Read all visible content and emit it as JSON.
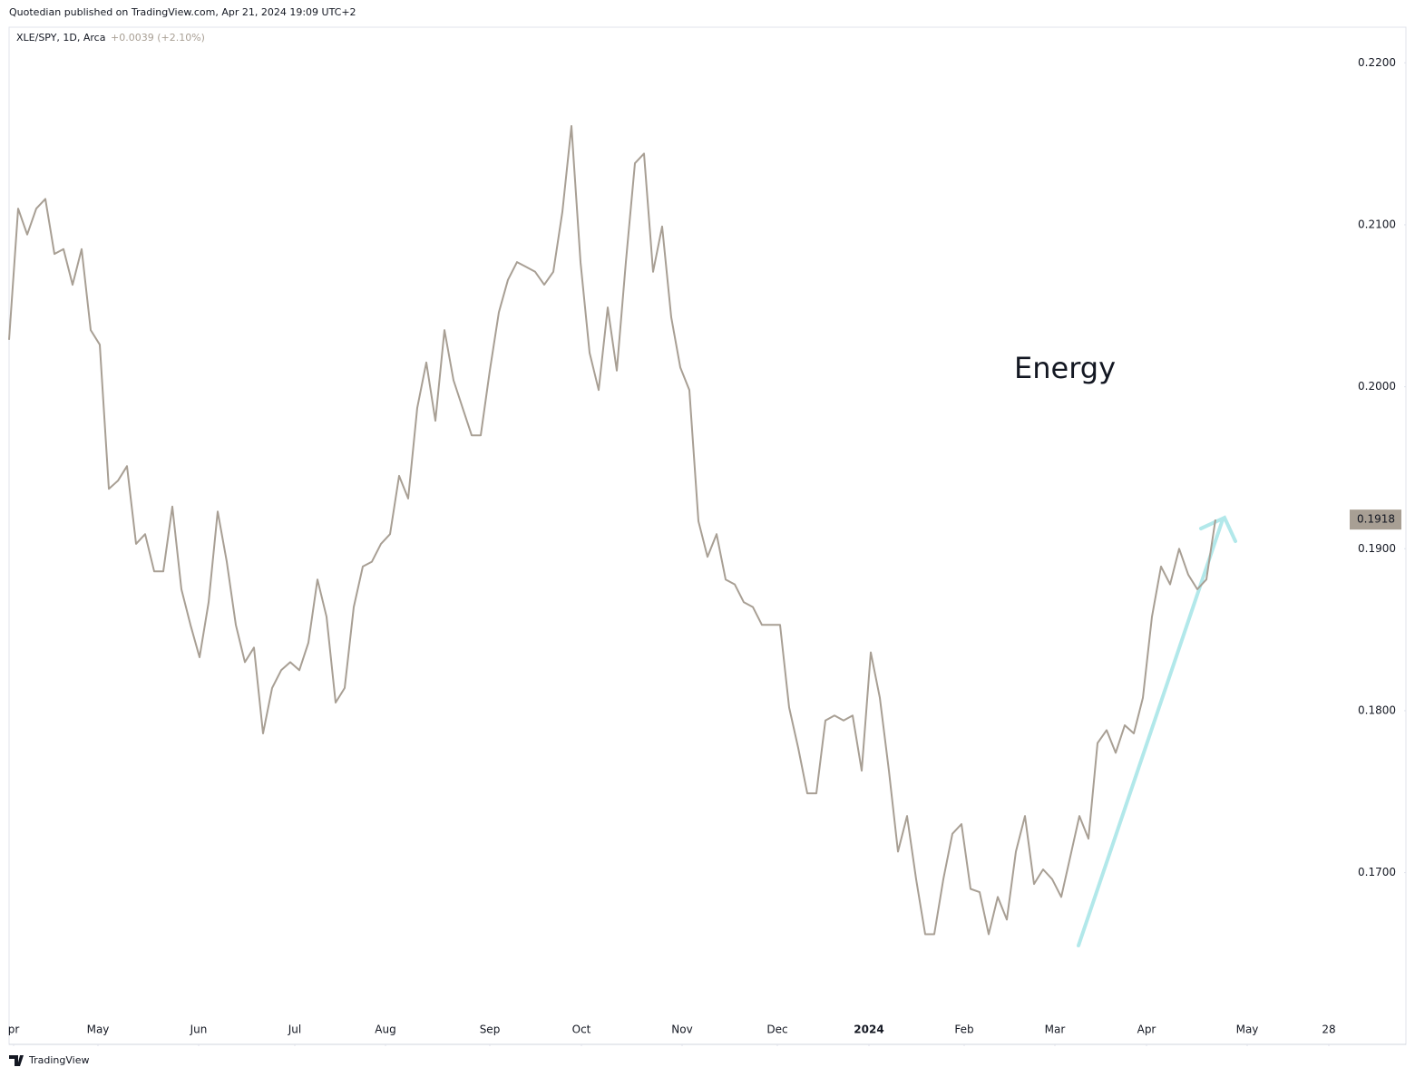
{
  "header": {
    "publisher": "Quotedian published on TradingView.com, Apr 21, 2024 19:09 UTC+2"
  },
  "footer": {
    "brand": "TradingView"
  },
  "chart_data": {
    "type": "line",
    "symbol": "XLE/SPY, 1D, Arca",
    "change": "+0.0039 (+2.10%)",
    "annotation": "Energy",
    "last_label": "0.1918",
    "series": [
      {
        "name": "XLE/SPY",
        "color": "#a89f94",
        "values": [
          0.2029,
          0.211,
          0.2094,
          0.211,
          0.2116,
          0.2082,
          0.2085,
          0.2063,
          0.2085,
          0.2035,
          0.2026,
          0.1937,
          0.1942,
          0.1951,
          0.1903,
          0.1909,
          0.1886,
          0.1886,
          0.1926,
          0.1875,
          0.1853,
          0.1833,
          0.1867,
          0.1923,
          0.1892,
          0.1853,
          0.183,
          0.1839,
          0.1786,
          0.1814,
          0.1825,
          0.183,
          0.1825,
          0.1842,
          0.1881,
          0.1858,
          0.1805,
          0.1814,
          0.1864,
          0.1889,
          0.1892,
          0.1903,
          0.1909,
          0.1945,
          0.1931,
          0.1987,
          0.2015,
          0.1979,
          0.2035,
          0.2004,
          0.1987,
          0.197,
          0.197,
          0.201,
          0.2046,
          0.2066,
          0.2077,
          0.2074,
          0.2071,
          0.2063,
          0.2071,
          0.2108,
          0.2161,
          0.2077,
          0.2021,
          0.1998,
          0.2049,
          0.201,
          0.2077,
          0.2138,
          0.2144,
          0.2071,
          0.2099,
          0.2043,
          0.2012,
          0.1998,
          0.1917,
          0.1895,
          0.1909,
          0.1881,
          0.1878,
          0.1867,
          0.1864,
          0.1853,
          0.1853,
          0.1853,
          0.1802,
          0.1777,
          0.1749,
          0.1749,
          0.1794,
          0.1797,
          0.1794,
          0.1797,
          0.1763,
          0.1836,
          0.1808,
          0.1763,
          0.1713,
          0.1735,
          0.1696,
          0.1662,
          0.1662,
          0.1696,
          0.1724,
          0.173,
          0.169,
          0.1688,
          0.1662,
          0.1685,
          0.1671,
          0.1713,
          0.1735,
          0.1693,
          0.1702,
          0.1696,
          0.1685,
          0.171,
          0.1735,
          0.1721,
          0.178,
          0.1788,
          0.1774,
          0.1791,
          0.1786,
          0.1808,
          0.1858,
          0.1889,
          0.1878,
          0.19,
          0.1884,
          0.1875,
          0.1881,
          0.1918
        ]
      }
    ],
    "xlim": [
      0,
      147
    ],
    "xticks": [
      {
        "value": 0.5,
        "label": "pr"
      },
      {
        "value": 9.8,
        "label": "May"
      },
      {
        "value": 20.9,
        "label": "Jun"
      },
      {
        "value": 31.5,
        "label": "Jul"
      },
      {
        "value": 41.5,
        "label": "Aug"
      },
      {
        "value": 53,
        "label": "Sep"
      },
      {
        "value": 63.1,
        "label": "Oct"
      },
      {
        "value": 74.2,
        "label": "Nov"
      },
      {
        "value": 84.7,
        "label": "Dec"
      },
      {
        "value": 94.8,
        "label": "2024"
      },
      {
        "value": 105.3,
        "label": "Feb"
      },
      {
        "value": 115.3,
        "label": "Mar"
      },
      {
        "value": 125.4,
        "label": "Apr"
      },
      {
        "value": 136.5,
        "label": "May"
      },
      {
        "value": 145.5,
        "label": "28"
      }
    ],
    "ylim": [
      0.1594,
      0.2222
    ],
    "yticks": [
      {
        "value": 0.17,
        "label": "0.1700"
      },
      {
        "value": 0.18,
        "label": "0.1800"
      },
      {
        "value": 0.19,
        "label": "0.1900"
      },
      {
        "value": 0.2,
        "label": "0.2000"
      },
      {
        "value": 0.21,
        "label": "0.2100"
      },
      {
        "value": 0.22,
        "label": "0.2200"
      }
    ],
    "grid": false
  }
}
